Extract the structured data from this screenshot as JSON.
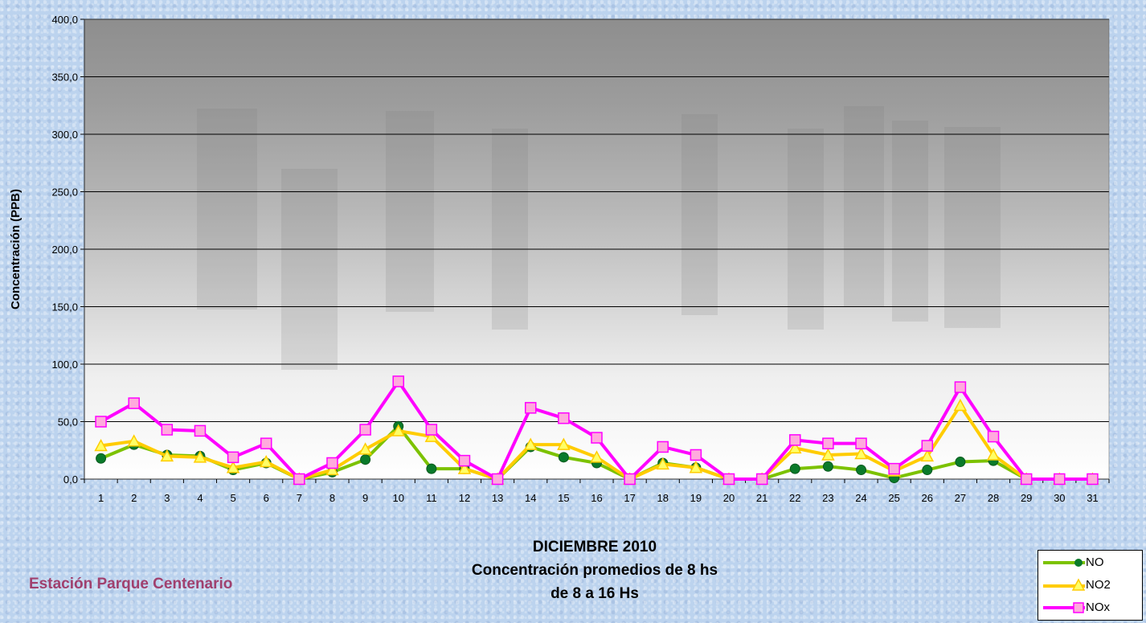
{
  "chart_data": {
    "type": "line",
    "title": "DICIEMBRE 2010",
    "subtitle_lines": [
      "Concentración promedios de 8 hs",
      "de 8 a 16 Hs"
    ],
    "station_label": "Estación Parque Centenario",
    "ylabel": "Concentración (PPB)",
    "xlabel": "",
    "ylim": [
      0,
      400
    ],
    "y_ticks": [
      "0,0",
      "50,0",
      "100,0",
      "150,0",
      "200,0",
      "250,0",
      "300,0",
      "350,0",
      "400,0"
    ],
    "y_tick_values": [
      0,
      50,
      100,
      150,
      200,
      250,
      300,
      350,
      400
    ],
    "grid": true,
    "legend_position": "bottom-right",
    "categories": [
      "1",
      "2",
      "3",
      "4",
      "5",
      "6",
      "7",
      "8",
      "9",
      "10",
      "11",
      "12",
      "13",
      "14",
      "15",
      "16",
      "17",
      "18",
      "19",
      "20",
      "21",
      "22",
      "23",
      "24",
      "25",
      "26",
      "27",
      "28",
      "29",
      "30",
      "31"
    ],
    "series": [
      {
        "name": "NO",
        "color": "#7cc200",
        "marker": "circle",
        "marker_color": "#0a7a2a",
        "values": [
          18,
          30,
          21,
          20,
          8,
          14,
          0,
          6,
          17,
          46,
          9,
          9,
          0,
          28,
          19,
          14,
          0,
          14,
          10,
          0,
          0,
          9,
          11,
          8,
          1,
          8,
          15,
          16,
          0,
          0,
          0
        ]
      },
      {
        "name": "NO2",
        "color": "#ffcc00",
        "marker": "triangle",
        "marker_color": "#ffff66",
        "values": [
          29,
          33,
          20,
          19,
          10,
          15,
          0,
          8,
          26,
          42,
          37,
          9,
          0,
          30,
          30,
          19,
          0,
          13,
          10,
          0,
          0,
          27,
          21,
          22,
          7,
          20,
          64,
          21,
          0,
          0,
          0
        ]
      },
      {
        "name": "NOx",
        "color": "#ff00ff",
        "marker": "square",
        "marker_color": "#ffaadd",
        "values": [
          50,
          66,
          43,
          42,
          19,
          31,
          0,
          14,
          43,
          85,
          43,
          16,
          0,
          62,
          53,
          36,
          0,
          28,
          21,
          0,
          0,
          34,
          31,
          31,
          9,
          29,
          80,
          37,
          0,
          0,
          0
        ]
      }
    ]
  }
}
